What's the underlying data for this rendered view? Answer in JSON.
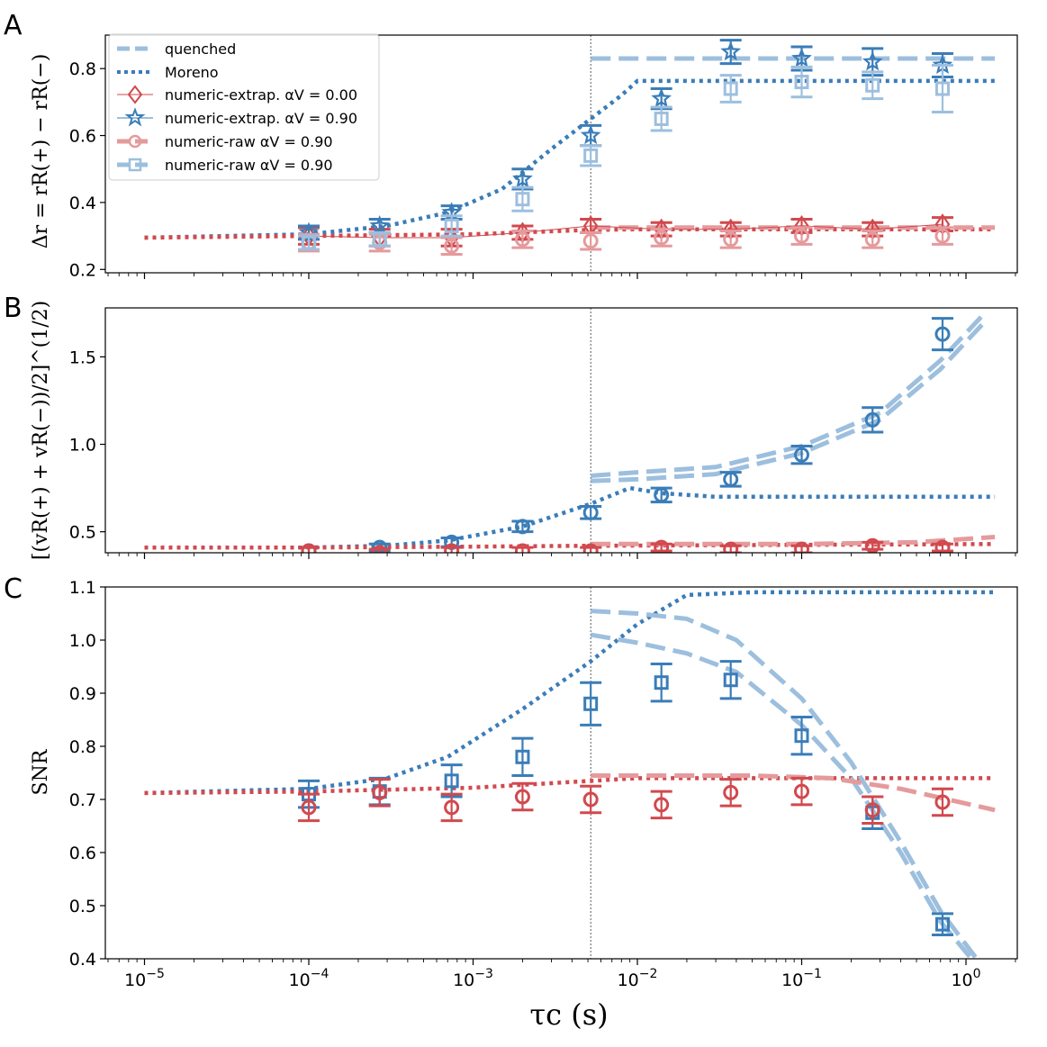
{
  "figure": {
    "panel_letters": [
      "A",
      "B",
      "C"
    ],
    "xlabel": "τc (s)",
    "colors": {
      "red": "#d1494e",
      "blue": "#3a7db8",
      "red_light": "#e59a9c",
      "blue_light": "#9dbfde"
    }
  },
  "chart_data": [
    {
      "panel": "A",
      "type": "line",
      "ylabel": "Δr = rR(+) − rR(−)",
      "xscale": "log",
      "xlim": [
        5e-06,
        2
      ],
      "ylim": [
        0.19,
        0.9
      ],
      "yticks": [
        "0.2",
        "0.4",
        "0.6",
        "0.8"
      ],
      "vline_x": 0.0052,
      "legend": {
        "position": "top-left",
        "entries": [
          {
            "label": "quenched",
            "style": "dashed-light-blue"
          },
          {
            "label": "Moreno",
            "style": "dotted-blue"
          },
          {
            "label": "numeric-extrap. αV = 0.00",
            "style": "diamond-red"
          },
          {
            "label": "numeric-extrap. αV = 0.90",
            "style": "star-blue"
          },
          {
            "label": "numeric-raw αV = 0.90",
            "style": "circle-light-red"
          },
          {
            "label": "numeric-raw αV = 0.90",
            "style": "square-light-blue"
          }
        ]
      },
      "series": [
        {
          "name": "Moreno blue",
          "x": [
            1e-05,
            0.0001,
            0.0003,
            0.0007,
            0.0015,
            0.003,
            0.0052,
            0.008,
            0.01,
            0.03,
            0.1,
            0.3,
            1.5
          ],
          "y": [
            0.295,
            0.305,
            0.33,
            0.37,
            0.44,
            0.56,
            0.65,
            0.72,
            0.763,
            0.763,
            0.763,
            0.763,
            0.763
          ]
        },
        {
          "name": "Moreno red",
          "x": [
            1e-05,
            0.0001,
            0.001,
            0.005,
            0.01,
            0.1,
            1.5
          ],
          "y": [
            0.295,
            0.3,
            0.305,
            0.318,
            0.32,
            0.32,
            0.32
          ]
        },
        {
          "name": "quenched blue",
          "x": [
            0.0052,
            1.5
          ],
          "y": [
            0.83,
            0.83
          ]
        },
        {
          "name": "quenched red",
          "x": [
            0.0052,
            1.5
          ],
          "y": [
            0.325,
            0.325
          ]
        },
        {
          "name": "numeric-extrap. αV = 0.00",
          "x": [
            0.0001,
            0.00027,
            0.00074,
            0.002,
            0.0052,
            0.014,
            0.037,
            0.1,
            0.27,
            0.72
          ],
          "y": [
            0.3,
            0.295,
            0.295,
            0.31,
            0.33,
            0.32,
            0.32,
            0.33,
            0.32,
            0.335
          ],
          "err": [
            0.025,
            0.025,
            0.025,
            0.02,
            0.02,
            0.02,
            0.02,
            0.02,
            0.02,
            0.02
          ]
        },
        {
          "name": "numeric-extrap. αV = 0.90",
          "x": [
            0.0001,
            0.00027,
            0.00074,
            0.002,
            0.0052,
            0.014,
            0.037,
            0.1,
            0.27,
            0.72
          ],
          "y": [
            0.31,
            0.33,
            0.37,
            0.47,
            0.6,
            0.71,
            0.85,
            0.83,
            0.82,
            0.81
          ],
          "err": [
            0.02,
            0.02,
            0.02,
            0.03,
            0.03,
            0.03,
            0.035,
            0.035,
            0.04,
            0.035
          ]
        },
        {
          "name": "numeric-raw red αV = 0.90",
          "x": [
            0.0001,
            0.00027,
            0.00074,
            0.002,
            0.0052,
            0.014,
            0.037,
            0.1,
            0.27,
            0.72
          ],
          "y": [
            0.28,
            0.28,
            0.27,
            0.29,
            0.285,
            0.295,
            0.29,
            0.3,
            0.29,
            0.3
          ],
          "err": [
            0.025,
            0.025,
            0.025,
            0.025,
            0.025,
            0.025,
            0.025,
            0.025,
            0.025,
            0.025
          ]
        },
        {
          "name": "numeric-raw blue αV = 0.90",
          "x": [
            0.0001,
            0.00027,
            0.00074,
            0.002,
            0.0052,
            0.014,
            0.037,
            0.1,
            0.27,
            0.72
          ],
          "y": [
            0.28,
            0.29,
            0.33,
            0.41,
            0.54,
            0.65,
            0.74,
            0.76,
            0.75,
            0.74
          ],
          "err": [
            0.02,
            0.02,
            0.03,
            0.035,
            0.03,
            0.035,
            0.04,
            0.045,
            0.04,
            0.07
          ]
        }
      ]
    },
    {
      "panel": "B",
      "type": "line",
      "ylabel": "[(vR(+) + vR(−))/2]^(1/2)",
      "xscale": "log",
      "xlim": [
        5e-06,
        2
      ],
      "ylim": [
        0.38,
        1.78
      ],
      "yticks": [
        "0.5",
        "1.0",
        "1.5"
      ],
      "vline_x": 0.0052,
      "series": [
        {
          "name": "Moreno blue",
          "x": [
            1e-05,
            0.0001,
            0.0003,
            0.0007,
            0.002,
            0.0052,
            0.009,
            0.014,
            0.03,
            0.1,
            1.5
          ],
          "y": [
            0.41,
            0.41,
            0.42,
            0.45,
            0.53,
            0.66,
            0.75,
            0.72,
            0.7,
            0.7,
            0.7
          ]
        },
        {
          "name": "Moreno red",
          "x": [
            1e-05,
            0.0001,
            0.001,
            0.0052,
            1.5
          ],
          "y": [
            0.41,
            0.41,
            0.415,
            0.42,
            0.43
          ]
        },
        {
          "name": "quenched blue 1",
          "x": [
            0.0052,
            0.01,
            0.03,
            0.1,
            0.3,
            0.7,
            1.3
          ],
          "y": [
            0.82,
            0.84,
            0.87,
            0.99,
            1.18,
            1.48,
            1.75
          ]
        },
        {
          "name": "quenched blue 2",
          "x": [
            0.0052,
            0.01,
            0.03,
            0.1,
            0.3,
            0.7,
            1.3
          ],
          "y": [
            0.79,
            0.8,
            0.83,
            0.95,
            1.14,
            1.43,
            1.7
          ]
        },
        {
          "name": "quenched red",
          "x": [
            0.0052,
            0.1,
            0.5,
            1.5
          ],
          "y": [
            0.43,
            0.43,
            0.44,
            0.47
          ]
        },
        {
          "name": "numeric blue",
          "x": [
            0.0001,
            0.00027,
            0.00074,
            0.002,
            0.0052,
            0.014,
            0.037,
            0.1,
            0.27,
            0.72
          ],
          "y": [
            0.39,
            0.41,
            0.44,
            0.53,
            0.61,
            0.71,
            0.8,
            0.94,
            1.14,
            1.63
          ],
          "err": [
            0.02,
            0.02,
            0.025,
            0.03,
            0.035,
            0.04,
            0.04,
            0.05,
            0.07,
            0.09
          ]
        },
        {
          "name": "numeric red",
          "x": [
            0.0001,
            0.00027,
            0.00074,
            0.002,
            0.0052,
            0.014,
            0.037,
            0.1,
            0.27,
            0.72
          ],
          "y": [
            0.39,
            0.38,
            0.39,
            0.39,
            0.39,
            0.41,
            0.4,
            0.4,
            0.42,
            0.41
          ],
          "err": [
            0.02,
            0.02,
            0.02,
            0.02,
            0.02,
            0.02,
            0.02,
            0.02,
            0.02,
            0.02
          ]
        }
      ]
    },
    {
      "panel": "C",
      "type": "line",
      "ylabel": "SNR",
      "xscale": "log",
      "xlim": [
        5e-06,
        2
      ],
      "ylim": [
        0.4,
        1.1
      ],
      "yticks": [
        "0.4",
        "0.5",
        "0.6",
        "0.7",
        "0.8",
        "0.9",
        "1.0",
        "1.1"
      ],
      "xticks": [
        "10−5",
        "10−4",
        "10−3",
        "10−2",
        "10−1",
        "100"
      ],
      "vline_x": 0.0052,
      "series": [
        {
          "name": "Moreno blue",
          "x": [
            1e-05,
            0.0001,
            0.0003,
            0.0007,
            0.002,
            0.0052,
            0.01,
            0.02,
            0.05,
            0.1,
            1.5
          ],
          "y": [
            0.712,
            0.72,
            0.74,
            0.78,
            0.87,
            0.96,
            1.03,
            1.085,
            1.09,
            1.09,
            1.09
          ]
        },
        {
          "name": "Moreno red",
          "x": [
            1e-05,
            0.0001,
            0.001,
            0.0052,
            0.01,
            0.1,
            1.5
          ],
          "y": [
            0.712,
            0.715,
            0.722,
            0.735,
            0.74,
            0.74,
            0.74
          ]
        },
        {
          "name": "quenched blue 1",
          "x": [
            0.0052,
            0.01,
            0.02,
            0.04,
            0.1,
            0.2,
            0.4,
            0.7,
            1.3
          ],
          "y": [
            1.055,
            1.05,
            1.04,
            1.0,
            0.89,
            0.77,
            0.62,
            0.49,
            0.38
          ]
        },
        {
          "name": "quenched blue 2",
          "x": [
            0.0052,
            0.01,
            0.02,
            0.04,
            0.1,
            0.2,
            0.4,
            0.7,
            1.3
          ],
          "y": [
            1.01,
            0.995,
            0.975,
            0.94,
            0.84,
            0.74,
            0.6,
            0.47,
            0.37
          ]
        },
        {
          "name": "quenched red",
          "x": [
            0.0052,
            0.05,
            0.15,
            0.4,
            1.5
          ],
          "y": [
            0.745,
            0.745,
            0.74,
            0.72,
            0.68
          ]
        },
        {
          "name": "numeric blue",
          "x": [
            0.0001,
            0.00027,
            0.00074,
            0.002,
            0.0052,
            0.014,
            0.037,
            0.1,
            0.27,
            0.72
          ],
          "y": [
            0.71,
            0.715,
            0.735,
            0.78,
            0.88,
            0.92,
            0.925,
            0.82,
            0.675,
            0.465
          ],
          "err": [
            0.025,
            0.025,
            0.03,
            0.035,
            0.04,
            0.035,
            0.035,
            0.035,
            0.03,
            0.02
          ]
        },
        {
          "name": "numeric red",
          "x": [
            0.0001,
            0.00027,
            0.00074,
            0.002,
            0.0052,
            0.014,
            0.037,
            0.1,
            0.27,
            0.72
          ],
          "y": [
            0.685,
            0.713,
            0.685,
            0.705,
            0.7,
            0.69,
            0.713,
            0.715,
            0.68,
            0.695
          ],
          "err": [
            0.025,
            0.025,
            0.025,
            0.025,
            0.025,
            0.025,
            0.025,
            0.025,
            0.025,
            0.025
          ]
        }
      ]
    }
  ]
}
